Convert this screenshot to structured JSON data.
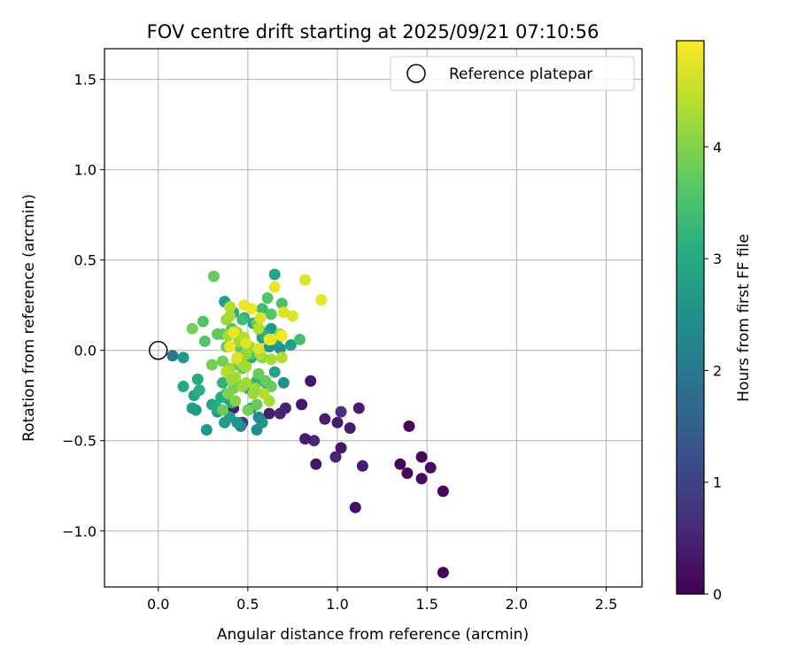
{
  "chart_data": {
    "type": "scatter",
    "title": "FOV centre drift starting at 2025/09/21 07:10:56",
    "xlabel": "Angular distance from reference (arcmin)",
    "ylabel": "Rotation from reference (arcmin)",
    "xlim": [
      -0.3,
      2.7
    ],
    "ylim": [
      -1.31,
      1.67
    ],
    "grid": true,
    "x_ticks": [
      0.0,
      0.5,
      1.0,
      1.5,
      2.0,
      2.5
    ],
    "x_tick_labels": [
      "0.0",
      "0.5",
      "1.0",
      "1.5",
      "2.0",
      "2.5"
    ],
    "y_ticks": [
      1.5,
      1.0,
      0.5,
      0.0,
      -0.5,
      -1.0
    ],
    "y_tick_labels": [
      "1.5",
      "1.0",
      "0.5",
      "0.0",
      "−0.5",
      "−1.0"
    ],
    "legend": {
      "position": "top-right",
      "label": "Reference platepar"
    },
    "reference_point": {
      "x": 0.0,
      "y": 0.0
    },
    "colorbar": {
      "label": "Hours from first FF file",
      "range": [
        0,
        4.95
      ],
      "ticks": [
        0,
        1,
        2,
        3,
        4
      ],
      "tick_labels": [
        "0",
        "1",
        "2",
        "3",
        "4"
      ],
      "colormap": "viridis"
    },
    "series": [
      {
        "name": "FOV centre",
        "x": [
          1.59,
          1.47,
          1.52,
          1.35,
          1.39,
          1.59,
          1.47,
          1.4,
          1.1,
          1.14,
          1.12,
          1.02,
          1.07,
          0.99,
          0.93,
          0.88,
          0.87,
          0.82,
          0.8,
          0.85,
          0.71,
          0.68,
          0.62,
          0.57,
          0.47,
          0.42,
          1.02,
          1.0,
          0.55,
          0.46,
          0.44,
          0.52,
          0.4,
          0.37,
          0.33,
          0.58,
          0.56,
          0.27,
          0.21,
          0.19,
          0.2,
          0.14,
          0.08,
          0.14,
          0.22,
          0.23,
          0.3,
          0.33,
          0.35,
          0.38,
          0.44,
          0.5,
          0.55,
          0.6,
          0.65,
          0.7,
          0.74,
          0.68,
          0.58,
          0.63,
          0.62,
          0.66,
          0.65,
          0.37,
          0.42,
          0.48,
          0.53,
          0.57,
          0.6,
          0.48,
          0.52,
          0.45,
          0.36,
          0.39,
          0.41,
          0.79,
          0.61,
          0.69,
          0.58,
          0.63,
          0.47,
          0.55,
          0.41,
          0.36,
          0.31,
          0.25,
          0.19,
          0.33,
          0.26,
          0.38,
          0.46,
          0.52,
          0.36,
          0.47,
          0.56,
          0.6,
          0.42,
          0.39,
          0.43,
          0.3,
          0.36,
          0.5,
          0.55,
          0.63,
          0.58,
          0.49,
          0.46,
          0.4,
          0.43,
          0.49,
          0.54,
          0.59,
          0.62,
          0.4,
          0.38,
          0.39,
          0.45,
          0.51,
          0.57,
          0.44,
          0.49,
          0.38,
          0.41,
          0.47,
          0.53,
          0.63,
          0.69,
          0.68,
          0.56,
          0.4,
          0.44,
          0.48,
          0.82,
          0.91,
          0.65,
          0.7,
          0.75,
          0.48,
          0.52,
          0.57,
          0.62,
          0.69,
          0.42,
          0.49,
          0.56,
          0.63,
          0.4,
          0.44
        ],
        "hours": [
          0.05,
          0.1,
          0.15,
          0.1,
          0.12,
          0.1,
          0.2,
          0.1,
          0.2,
          0.4,
          0.4,
          0.3,
          0.4,
          0.5,
          0.4,
          0.3,
          0.6,
          0.4,
          0.3,
          0.3,
          0.5,
          0.5,
          0.4,
          0.6,
          0.8,
          0.4,
          0.7,
          0.4,
          2.4,
          2.3,
          2.6,
          2.5,
          2.7,
          2.7,
          2.6,
          2.6,
          2.4,
          2.6,
          2.7,
          2.8,
          2.9,
          3.0,
          2.0,
          2.7,
          3.0,
          3.1,
          2.9,
          3.0,
          3.0,
          3.1,
          3.1,
          3.0,
          3.2,
          3.0,
          2.9,
          2.5,
          2.8,
          2.5,
          2.7,
          2.7,
          2.6,
          2.8,
          2.9,
          2.8,
          3.0,
          3.1,
          2.9,
          3.0,
          3.1,
          3.1,
          3.0,
          3.2,
          3.2,
          3.0,
          3.0,
          3.5,
          3.6,
          3.5,
          3.4,
          3.6,
          3.4,
          3.8,
          3.6,
          3.7,
          3.8,
          3.6,
          3.9,
          3.7,
          3.6,
          3.8,
          3.7,
          3.6,
          3.9,
          3.8,
          3.8,
          3.8,
          3.9,
          4.0,
          4.0,
          3.9,
          3.8,
          3.9,
          3.8,
          3.8,
          4.1,
          4.2,
          4.1,
          4.2,
          4.3,
          4.3,
          4.2,
          4.4,
          4.3,
          4.4,
          4.2,
          4.3,
          4.3,
          4.2,
          4.4,
          4.4,
          4.3,
          4.4,
          4.2,
          4.2,
          4.2,
          4.3,
          4.4,
          4.2,
          4.4,
          4.3,
          4.3,
          4.4,
          4.7,
          4.8,
          4.8,
          4.7,
          4.7,
          4.8,
          4.8,
          4.7,
          4.9,
          4.9,
          4.8,
          4.7,
          4.7,
          4.8,
          4.8,
          4.7
        ],
        "y": [
          -1.23,
          -0.59,
          -0.65,
          -0.63,
          -0.68,
          -0.78,
          -0.71,
          -0.42,
          -0.87,
          -0.64,
          -0.32,
          -0.54,
          -0.43,
          -0.59,
          -0.38,
          -0.63,
          -0.5,
          -0.49,
          -0.3,
          -0.17,
          -0.32,
          -0.35,
          -0.35,
          -0.38,
          -0.4,
          -0.32,
          -0.34,
          -0.4,
          -0.44,
          -0.42,
          -0.4,
          -0.32,
          -0.37,
          -0.4,
          -0.34,
          -0.4,
          -0.37,
          -0.44,
          -0.33,
          -0.32,
          -0.25,
          -0.2,
          -0.03,
          -0.04,
          -0.16,
          -0.22,
          -0.3,
          -0.32,
          -0.26,
          -0.24,
          -0.19,
          -0.21,
          -0.17,
          -0.18,
          -0.12,
          -0.18,
          0.03,
          0.01,
          0.07,
          0.12,
          0.02,
          0.05,
          0.42,
          0.27,
          0.21,
          0.18,
          0.15,
          0.11,
          0.08,
          0.05,
          -0.04,
          -0.08,
          -0.18,
          -0.27,
          -0.29,
          0.06,
          0.29,
          0.26,
          0.23,
          0.2,
          0.17,
          0.15,
          0.12,
          0.09,
          0.41,
          0.16,
          0.12,
          0.09,
          0.05,
          0.02,
          0.01,
          -0.02,
          -0.06,
          -0.1,
          -0.13,
          -0.17,
          -0.21,
          -0.24,
          -0.28,
          -0.08,
          -0.33,
          -0.33,
          -0.3,
          -0.2,
          -0.04,
          -0.02,
          -0.07,
          -0.1,
          -0.15,
          -0.18,
          -0.21,
          -0.24,
          -0.28,
          0.24,
          0.17,
          0.08,
          0.05,
          0.02,
          -0.02,
          -0.05,
          -0.09,
          -0.12,
          -0.16,
          -0.2,
          -0.24,
          -0.05,
          -0.04,
          0.09,
          0.12,
          0.19,
          0.1,
          0.07,
          0.39,
          0.28,
          0.35,
          0.21,
          0.19,
          0.25,
          0.23,
          0.18,
          0.06,
          0.08,
          0.1,
          0.04,
          0.01,
          0.06,
          0.02,
          -0.04
        ]
      }
    ]
  }
}
